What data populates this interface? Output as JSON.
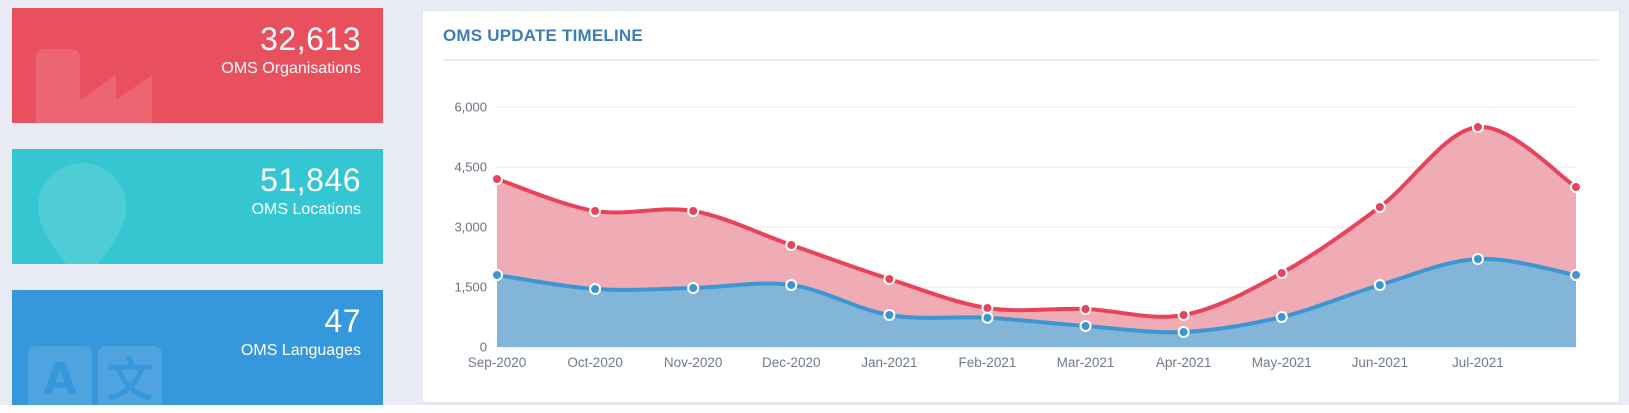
{
  "cards": [
    {
      "value": "32,613",
      "label": "OMS Organisations",
      "color": "#e8505e",
      "icon": "factory-icon"
    },
    {
      "value": "51,846",
      "label": "OMS Locations",
      "color": "#34c6d1",
      "icon": "location-pin-icon"
    },
    {
      "value": "47",
      "label": "OMS Languages",
      "color": "#3597dc",
      "icon": "translate-icon",
      "glyphs": [
        "A",
        "文"
      ]
    }
  ],
  "panel": {
    "title": "OMS UPDATE TIMELINE",
    "title_color": "#3e7cba"
  },
  "chart_data": {
    "type": "area",
    "title": "OMS UPDATE TIMELINE",
    "x": [
      "Sep-2020",
      "Oct-2020",
      "Nov-2020",
      "Dec-2020",
      "Jan-2021",
      "Feb-2021",
      "Mar-2021",
      "Apr-2021",
      "May-2021",
      "Jun-2021",
      "Jul-2021",
      ""
    ],
    "series": [
      {
        "name": "red",
        "color": "#e8435a",
        "fill": "#efacb4",
        "values": [
          4200,
          3400,
          3400,
          2550,
          1700,
          975,
          950,
          800,
          1850,
          3500,
          5500,
          4000
        ]
      },
      {
        "name": "blue",
        "color": "#3d96d2",
        "fill": "#83b5d9",
        "values": [
          1800,
          1450,
          1475,
          1550,
          800,
          730,
          525,
          375,
          750,
          1550,
          2200,
          1800
        ]
      }
    ],
    "ylim": [
      0,
      6000
    ],
    "yticks": [
      0,
      1500,
      3000,
      4500,
      6000
    ],
    "ytick_labels": [
      "0",
      "1,500",
      "3,000",
      "4,500",
      "6,000"
    ],
    "grid": "horizontal",
    "legend": false,
    "xlabel": "",
    "ylabel": ""
  }
}
